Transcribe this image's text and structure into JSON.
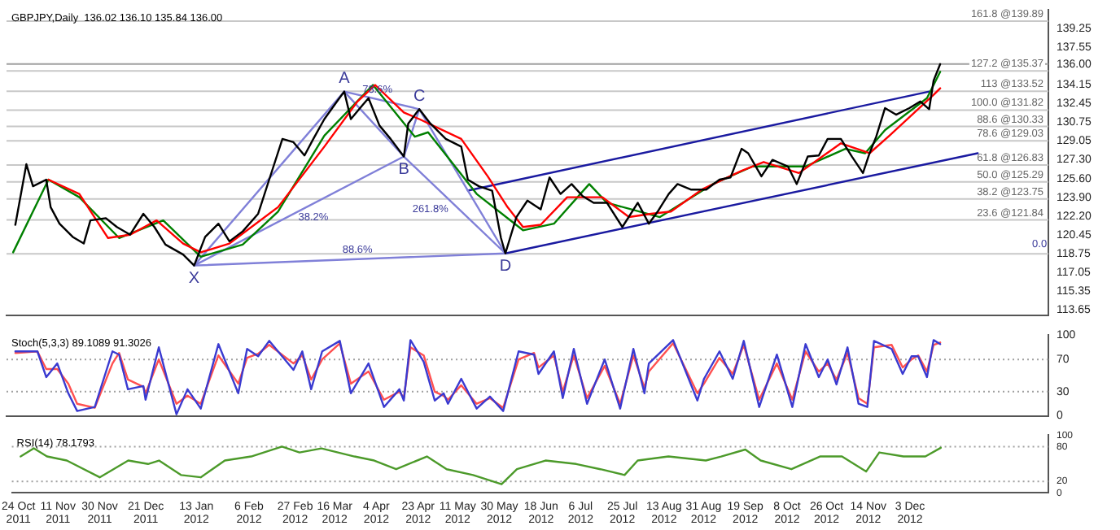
{
  "chart_data": [
    {
      "type": "line",
      "title": "GBPJPY,Daily  136.02 136.10 135.84 136.00",
      "xlim": [
        "2011-10-21",
        "2013-02-04"
      ],
      "ylim": [
        113.2,
        140.9
      ],
      "tick_labels": "y",
      "yticks": [
        139.25,
        137.55,
        {
          "value": 136,
          "label": "136.00"
        },
        134.15,
        132.45,
        130.75,
        129.05,
        {
          "value": 127.3,
          "label": "127.30"
        },
        {
          "value": 125.6,
          "label": "125.60"
        },
        {
          "value": 123.9,
          "label": "123.90"
        },
        {
          "value": 122.2,
          "label": "122.20"
        },
        120.45,
        118.75,
        117.05,
        115.35,
        113.65
      ],
      "series": [
        {
          "color": "#000000",
          "x": [
            "2011-10-25",
            "2011-10-30",
            "2011-11-02",
            "2011-11-08",
            "2011-11-10",
            "2011-11-14",
            "2011-11-20",
            "2011-11-25",
            "2011-11-28",
            "2011-12-05",
            "2011-12-10",
            "2011-12-16",
            "2011-12-22",
            "2011-12-27",
            "2012-01-01",
            "2012-01-09",
            "2012-01-14",
            "2012-01-19",
            "2012-01-25",
            "2012-01-30",
            "2012-02-05",
            "2012-02-12",
            "2012-02-17",
            "2012-02-23",
            "2012-02-28",
            "2012-03-04",
            "2012-03-08",
            "2012-03-13",
            "2012-03-18",
            "2012-03-22",
            "2012-03-25",
            "2012-03-30",
            "2012-04-02",
            "2012-04-07",
            "2012-04-12",
            "2012-04-18",
            "2012-04-20",
            "2012-04-25",
            "2012-04-30",
            "2012-05-07",
            "2012-05-14",
            "2012-05-17",
            "2012-05-22",
            "2012-05-28",
            "2012-06-01",
            "2012-06-03",
            "2012-06-08",
            "2012-06-13",
            "2012-06-19",
            "2012-06-23",
            "2012-06-28",
            "2012-07-03",
            "2012-07-08",
            "2012-07-13",
            "2012-07-19",
            "2012-07-26",
            "2012-08-02",
            "2012-08-07",
            "2012-08-11",
            "2012-08-16",
            "2012-08-20",
            "2012-08-26",
            "2012-09-02",
            "2012-09-08",
            "2012-09-13",
            "2012-09-18",
            "2012-09-21",
            "2012-09-27",
            "2012-10-02",
            "2012-10-09",
            "2012-10-13",
            "2012-10-18",
            "2012-10-23",
            "2012-10-27",
            "2012-11-02",
            "2012-11-07",
            "2012-11-12",
            "2012-11-15",
            "2012-11-18",
            "2012-11-22",
            "2012-11-27",
            "2012-12-03",
            "2012-12-08",
            "2012-12-12",
            "2012-12-14",
            "2012-12-17"
          ],
          "values": [
            121.4,
            126.9,
            124.9,
            125.5,
            123.0,
            121.5,
            120.3,
            119.7,
            121.8,
            122.0,
            121.2,
            120.5,
            122.4,
            121.2,
            119.6,
            118.7,
            117.7,
            120.3,
            121.5,
            119.9,
            120.8,
            122.4,
            125.5,
            129.2,
            128.9,
            127.7,
            129.2,
            131.0,
            132.4,
            133.5,
            131.0,
            132.2,
            132.9,
            130.4,
            129.2,
            127.6,
            130.6,
            131.9,
            130.6,
            129.2,
            128.5,
            125.5,
            124.9,
            124.5,
            120.2,
            118.8,
            122.1,
            123.6,
            122.8,
            125.7,
            124.2,
            125.1,
            124.0,
            123.4,
            123.4,
            121.2,
            123.4,
            121.5,
            122.6,
            124.2,
            125.1,
            124.6,
            124.6,
            125.5,
            125.7,
            128.3,
            127.9,
            125.8,
            127.3,
            126.7,
            125.1,
            127.6,
            127.7,
            129.2,
            129.2,
            127.6,
            126.1,
            127.9,
            129.4,
            132.0,
            131.4,
            132.0,
            132.6,
            131.9,
            134.5,
            136.0
          ]
        },
        {
          "color": "#ff0000",
          "x": [
            "2011-11-09",
            "2011-11-23",
            "2011-12-06",
            "2011-12-16",
            "2011-12-28",
            "2012-01-09",
            "2012-01-17",
            "2012-01-30",
            "2012-02-21",
            "2012-03-13",
            "2012-03-28",
            "2012-04-05",
            "2012-04-18",
            "2012-04-25",
            "2012-05-14",
            "2012-05-26",
            "2012-06-04",
            "2012-06-11",
            "2012-06-19",
            "2012-07-01",
            "2012-07-17",
            "2012-07-29",
            "2012-08-08",
            "2012-08-17",
            "2012-08-31",
            "2012-09-18",
            "2012-09-28",
            "2012-10-14",
            "2012-11-02",
            "2012-11-15",
            "2012-11-24",
            "2012-12-14",
            "2012-12-17"
          ],
          "values": [
            125.5,
            124.2,
            120.2,
            120.5,
            121.8,
            119.7,
            118.9,
            119.7,
            123.0,
            128.5,
            132.6,
            134.1,
            131.6,
            131.0,
            129.2,
            125.8,
            123.0,
            121.2,
            121.4,
            123.9,
            123.9,
            122.1,
            122.4,
            122.6,
            124.6,
            126.3,
            127.1,
            126.1,
            128.8,
            127.9,
            129.5,
            133.2,
            133.8
          ]
        },
        {
          "color": "#008000",
          "x": [
            "2011-10-24",
            "2011-11-09",
            "2011-11-23",
            "2011-12-11",
            "2011-12-31",
            "2012-01-17",
            "2012-02-05",
            "2012-02-21",
            "2012-03-13",
            "2012-04-04",
            "2012-04-23",
            "2012-04-29",
            "2012-05-21",
            "2012-06-11",
            "2012-06-25",
            "2012-07-11",
            "2012-07-19",
            "2012-08-12",
            "2012-09-05",
            "2012-09-23",
            "2012-10-17",
            "2012-11-04",
            "2012-11-13",
            "2012-11-22",
            "2012-12-11",
            "2012-12-17"
          ],
          "values": [
            118.9,
            125.5,
            123.9,
            120.2,
            121.8,
            118.5,
            119.6,
            122.6,
            129.5,
            134.1,
            129.4,
            129.8,
            124.2,
            120.9,
            121.5,
            125.1,
            123.4,
            122.1,
            125.1,
            126.7,
            126.7,
            128.3,
            127.9,
            130.0,
            132.9,
            135.3
          ]
        },
        {
          "color": "#8080d8",
          "x": [
            "2012-01-14",
            "2012-03-22",
            "2012-04-18",
            "2012-04-25",
            "2012-06-03"
          ],
          "values": [
            117.7,
            133.5,
            127.6,
            131.9,
            118.8
          ]
        },
        {
          "color": "#8080d8",
          "x": [
            "2012-01-14",
            "2012-04-18"
          ],
          "values": [
            117.7,
            127.6
          ]
        },
        {
          "color": "#8080d8",
          "x": [
            "2012-03-22",
            "2012-04-25"
          ],
          "values": [
            133.5,
            131.9
          ]
        },
        {
          "color": "#8080d8",
          "x": [
            "2012-04-18",
            "2012-06-03"
          ],
          "values": [
            127.6,
            118.8
          ]
        },
        {
          "color": "#8080d8",
          "x": [
            "2012-01-14",
            "2012-06-03"
          ],
          "values": [
            117.7,
            118.8
          ]
        },
        {
          "color": "#1a1aa0",
          "x": [
            "2012-05-17",
            "2012-12-12"
          ],
          "values": [
            124.5,
            133.5
          ]
        },
        {
          "color": "#1a1aa0",
          "x": [
            "2012-06-03",
            "2013-01-03"
          ],
          "values": [
            118.8,
            127.9
          ]
        }
      ],
      "ref_lines": [
        {
          "axis": "y",
          "value": 136,
          "color": "#a0a0a0"
        },
        {
          "axis": "y",
          "value": 139.89,
          "label": "161.8 @139.89",
          "color": "#c8c8c8"
        },
        {
          "axis": "y",
          "value": 135.37,
          "label": "127.2 @135.37",
          "color": "#c8c8c8"
        },
        {
          "axis": "y",
          "value": 133.52,
          "label": "113 @133.52",
          "color": "#c8c8c8"
        },
        {
          "axis": "y",
          "value": 131.82,
          "label": "100.0 @131.82",
          "color": "#c8c8c8"
        },
        {
          "axis": "y",
          "value": 130.33,
          "label": "88.6 @130.33",
          "color": "#c8c8c8"
        },
        {
          "axis": "y",
          "value": 129.03,
          "label": "78.6 @129.03",
          "color": "#c8c8c8"
        },
        {
          "axis": "y",
          "value": 126.83,
          "label": "61.8 @126.83",
          "color": "#c8c8c8"
        },
        {
          "axis": "y",
          "value": 125.29,
          "label": "50.0 @125.29",
          "color": "#c8c8c8"
        },
        {
          "axis": "y",
          "value": 123.75,
          "label": "38.2 @123.75",
          "color": "#c8c8c8"
        },
        {
          "axis": "y",
          "value": 121.84,
          "label": "23.6 @121.84",
          "color": "#c8c8c8"
        },
        {
          "axis": "y",
          "value": 118.76,
          "color": "#c8c8c8"
        }
      ],
      "annotations": [
        {
          "text": "0.0",
          "x": "2013-01-31",
          "y": 118.76
        },
        {
          "text": "X",
          "x": "2012-01-14",
          "y": 117.7
        },
        {
          "text": "A",
          "x": "2012-03-22",
          "y": 133.5
        },
        {
          "text": "B",
          "x": "2012-04-18",
          "y": 127.6
        },
        {
          "text": "C",
          "x": "2012-04-25",
          "y": 131.9
        },
        {
          "text": "D",
          "x": "2012-06-03",
          "y": 118.8
        },
        {
          "text": "38.2%",
          "x": "2012-03-08",
          "y": 121.2
        },
        {
          "text": "88.6%",
          "x": "2012-03-28",
          "y": 118.26
        },
        {
          "text": "78.6%",
          "x": "2012-04-06",
          "y": 132.8
        },
        {
          "text": "261.8%",
          "x": "2012-04-30",
          "y": 121.9
        }
      ]
    },
    {
      "type": "line",
      "title": "Stoch(5,3,3) 89.1089 91.3026",
      "xlim": [
        "2011-10-21",
        "2013-02-04"
      ],
      "ylim": [
        0,
        100
      ],
      "yticks": [
        0,
        30,
        70,
        100
      ],
      "tick_labels": "y",
      "series": [
        {
          "color": "#3a3ad0",
          "x": [
            "2011-10-25",
            "2011-11-04",
            "2011-11-08",
            "2011-11-13",
            "2011-11-18",
            "2011-11-22",
            "2011-11-30",
            "2011-12-08",
            "2011-12-11",
            "2011-12-15",
            "2011-12-22",
            "2011-12-23",
            "2011-12-29",
            "2012-01-06",
            "2012-01-11",
            "2012-01-17",
            "2012-01-25",
            "2012-02-03",
            "2012-02-07",
            "2012-02-12",
            "2012-02-17",
            "2012-02-28",
            "2012-03-03",
            "2012-03-07",
            "2012-03-12",
            "2012-03-20",
            "2012-03-25",
            "2012-04-02",
            "2012-04-09",
            "2012-04-16",
            "2012-04-18",
            "2012-04-21",
            "2012-04-27",
            "2012-05-02",
            "2012-05-06",
            "2012-05-08",
            "2012-05-14",
            "2012-05-21",
            "2012-05-27",
            "2012-06-02",
            "2012-06-09",
            "2012-06-16",
            "2012-06-18",
            "2012-06-25",
            "2012-06-29",
            "2012-07-04",
            "2012-07-10",
            "2012-07-18",
            "2012-07-25",
            "2012-07-31",
            "2012-08-05",
            "2012-08-07",
            "2012-08-18",
            "2012-08-29",
            "2012-09-01",
            "2012-09-08",
            "2012-09-14",
            "2012-09-19",
            "2012-09-26",
            "2012-10-04",
            "2012-10-11",
            "2012-10-17",
            "2012-10-23",
            "2012-10-27",
            "2012-10-31",
            "2012-11-05",
            "2012-11-10",
            "2012-11-14",
            "2012-11-17",
            "2012-11-25",
            "2012-11-30",
            "2012-12-04",
            "2012-12-07",
            "2012-12-11",
            "2012-12-14",
            "2012-12-17"
          ],
          "values": [
            80,
            80,
            48,
            65,
            28,
            6,
            11,
            80,
            76,
            33,
            37,
            20,
            85,
            2,
            33,
            9,
            89,
            28,
            83,
            74,
            93,
            57,
            80,
            33,
            80,
            93,
            28,
            65,
            11,
            33,
            19,
            94,
            67,
            19,
            28,
            15,
            46,
            9,
            24,
            6,
            80,
            76,
            52,
            80,
            22,
            83,
            15,
            70,
            9,
            83,
            28,
            65,
            94,
            19,
            46,
            80,
            46,
            93,
            11,
            76,
            11,
            89,
            48,
            70,
            39,
            85,
            15,
            11,
            93,
            83,
            52,
            74,
            74,
            48,
            94,
            89
          ]
        },
        {
          "color": "#ff5050",
          "x": [
            "2011-10-25",
            "2011-11-04",
            "2011-11-08",
            "2011-11-13",
            "2011-11-18",
            "2011-11-22",
            "2011-11-30",
            "2011-12-08",
            "2011-12-11",
            "2011-12-15",
            "2011-12-22",
            "2011-12-23",
            "2011-12-29",
            "2012-01-06",
            "2012-01-11",
            "2012-01-17",
            "2012-01-25",
            "2012-02-03",
            "2012-02-07",
            "2012-02-12",
            "2012-02-17",
            "2012-02-28",
            "2012-03-03",
            "2012-03-07",
            "2012-03-12",
            "2012-03-20",
            "2012-03-25",
            "2012-04-02",
            "2012-04-09",
            "2012-04-16",
            "2012-04-18",
            "2012-04-21",
            "2012-04-27",
            "2012-05-02",
            "2012-05-06",
            "2012-05-08",
            "2012-05-14",
            "2012-05-21",
            "2012-05-27",
            "2012-06-02",
            "2012-06-09",
            "2012-06-16",
            "2012-06-18",
            "2012-06-25",
            "2012-06-29",
            "2012-07-04",
            "2012-07-10",
            "2012-07-18",
            "2012-07-25",
            "2012-07-31",
            "2012-08-05",
            "2012-08-07",
            "2012-08-18",
            "2012-08-29",
            "2012-09-01",
            "2012-09-08",
            "2012-09-14",
            "2012-09-19",
            "2012-09-26",
            "2012-10-04",
            "2012-10-11",
            "2012-10-17",
            "2012-10-23",
            "2012-10-27",
            "2012-10-31",
            "2012-11-05",
            "2012-11-10",
            "2012-11-14",
            "2012-11-17",
            "2012-11-25",
            "2012-11-30",
            "2012-12-04",
            "2012-12-07",
            "2012-12-11",
            "2012-12-14",
            "2012-12-17"
          ],
          "values": [
            78,
            80,
            58,
            58,
            40,
            15,
            10,
            65,
            78,
            45,
            36,
            28,
            70,
            15,
            25,
            15,
            75,
            40,
            72,
            77,
            88,
            65,
            75,
            45,
            70,
            90,
            40,
            55,
            20,
            30,
            22,
            85,
            75,
            30,
            25,
            20,
            38,
            15,
            22,
            10,
            70,
            78,
            60,
            75,
            30,
            75,
            22,
            62,
            15,
            75,
            35,
            55,
            90,
            28,
            40,
            72,
            52,
            88,
            20,
            65,
            20,
            80,
            55,
            65,
            45,
            78,
            22,
            15,
            85,
            88,
            60,
            70,
            75,
            55,
            88,
            91
          ]
        }
      ],
      "ref_lines": [
        {
          "axis": "y",
          "value": 70,
          "color": "#a0a0a0",
          "line_style": "dotted"
        },
        {
          "axis": "y",
          "value": 30,
          "color": "#a0a0a0",
          "line_style": "dotted"
        }
      ]
    },
    {
      "type": "line",
      "title": "RSI(14) 78.1793",
      "xlim": [
        "2011-10-21",
        "2013-02-04"
      ],
      "ylim": [
        0,
        100
      ],
      "yticks": [
        0,
        20,
        80,
        100
      ],
      "xticks": [
        {
          "value": "2011-10-24",
          "label": "24 Oct 2011"
        },
        {
          "value": "2011-11-11",
          "label": "11 Nov 2011"
        },
        {
          "value": "2011-11-30",
          "label": "30 Nov 2011"
        },
        {
          "value": "2011-12-21",
          "label": "21 Dec 2011"
        },
        {
          "value": "2012-01-13",
          "label": "13 Jan 2012"
        },
        {
          "value": "2012-02-06",
          "label": "6 Feb 2012"
        },
        {
          "value": "2012-02-27",
          "label": "27 Feb 2012"
        },
        {
          "value": "2012-03-16",
          "label": "16 Mar 2012"
        },
        {
          "value": "2012-04-04",
          "label": "4 Apr 2012"
        },
        {
          "value": "2012-04-23",
          "label": "23 Apr 2012"
        },
        {
          "value": "2012-05-11",
          "label": "11 May 2012"
        },
        {
          "value": "2012-05-30",
          "label": "30 May 2012"
        },
        {
          "value": "2012-06-18",
          "label": "18 Jun 2012"
        },
        {
          "value": "2012-07-06",
          "label": "6 Jul 2012"
        },
        {
          "value": "2012-07-25",
          "label": "25 Jul 2012"
        },
        {
          "value": "2012-08-13",
          "label": "13 Aug 2012"
        },
        {
          "value": "2012-08-31",
          "label": "31 Aug 2012"
        },
        {
          "value": "2012-09-19",
          "label": "19 Sep 2012"
        },
        {
          "value": "2012-10-08",
          "label": "8 Oct 2012"
        },
        {
          "value": "2012-10-26",
          "label": "26 Oct 2012"
        },
        {
          "value": "2012-11-14",
          "label": "14 Nov 2012"
        },
        {
          "value": "2012-12-03",
          "label": "3 Dec 2012"
        }
      ],
      "series": [
        {
          "color": "#4c9a2a",
          "x": [
            "2011-10-25",
            "2011-10-31",
            "2011-11-06",
            "2011-11-15",
            "2011-11-30",
            "2011-12-13",
            "2011-12-22",
            "2011-12-27",
            "2012-01-06",
            "2012-01-15",
            "2012-01-26",
            "2012-02-07",
            "2012-02-21",
            "2012-02-29",
            "2012-03-10",
            "2012-03-25",
            "2012-04-03",
            "2012-04-13",
            "2012-04-27",
            "2012-05-06",
            "2012-05-18",
            "2012-05-31",
            "2012-06-07",
            "2012-06-20",
            "2012-07-04",
            "2012-07-15",
            "2012-07-26",
            "2012-08-01",
            "2012-08-15",
            "2012-09-01",
            "2012-09-08",
            "2012-09-19",
            "2012-09-26",
            "2012-10-10",
            "2012-10-23",
            "2012-11-02",
            "2012-11-13",
            "2012-11-19",
            "2012-11-30",
            "2012-12-10",
            "2012-12-17"
          ],
          "values": [
            63,
            77,
            63,
            56,
            27,
            56,
            50,
            56,
            31,
            27,
            56,
            63,
            80,
            70,
            77,
            63,
            56,
            41,
            63,
            41,
            31,
            15,
            41,
            56,
            50,
            41,
            31,
            56,
            63,
            56,
            63,
            75,
            56,
            41,
            63,
            63,
            37,
            70,
            63,
            63,
            78
          ]
        }
      ],
      "ref_lines": [
        {
          "axis": "y",
          "value": 80,
          "color": "#a0a0a0",
          "line_style": "dotted"
        },
        {
          "axis": "y",
          "value": 20,
          "color": "#a0a0a0",
          "line_style": "dotted"
        }
      ]
    }
  ]
}
